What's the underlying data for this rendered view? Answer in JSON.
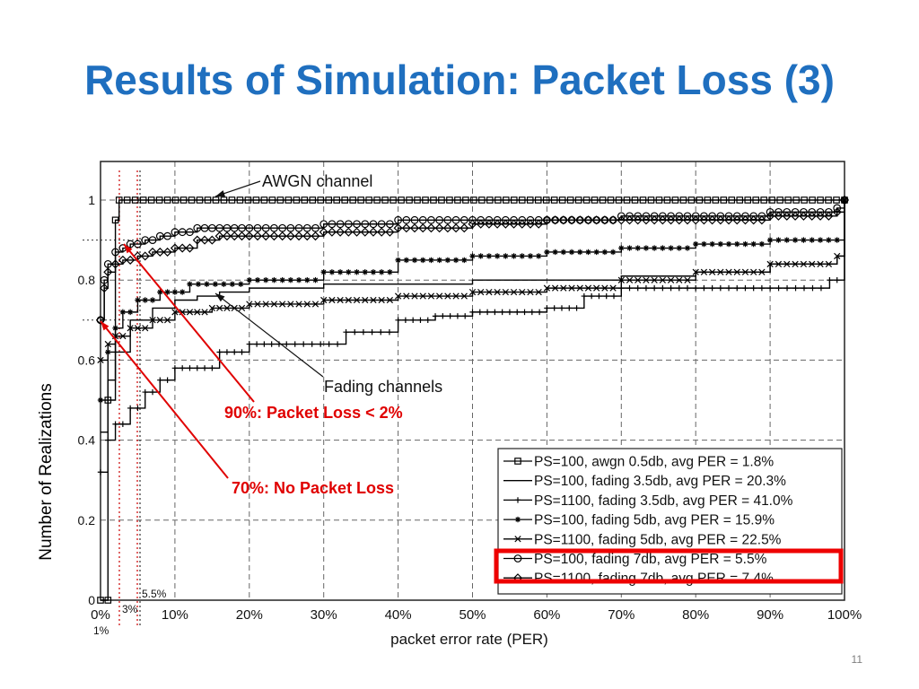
{
  "slide": {
    "title": "Results of Simulation: Packet Loss (3)",
    "page_number": "11"
  },
  "colors": {
    "title": "#1f6fbf",
    "annotation": "#e00000",
    "highlight_box": "#ee0000",
    "series": "#000000"
  },
  "annotations": {
    "awgn": "AWGN channel",
    "fading": "Fading channels",
    "pl90": "90%: Packet Loss < 2%",
    "pl70": "70%: No Packet Loss",
    "mark_1pct": "1%",
    "mark_3pct": "3%",
    "mark_55pct": "5.5%"
  },
  "chart_data": {
    "type": "line",
    "title": "",
    "xlabel": "packet error rate (PER)",
    "ylabel": "Number of Realizations",
    "xlim": [
      0,
      100
    ],
    "ylim": [
      0,
      1.1
    ],
    "x_ticks": [
      "0%",
      "10%",
      "20%",
      "30%",
      "40%",
      "50%",
      "60%",
      "70%",
      "80%",
      "90%",
      "100%"
    ],
    "y_ticks": [
      "0",
      "0.2",
      "0.4",
      "0.6",
      "0.8",
      "1"
    ],
    "grid": true,
    "legend_position": "bottom-right",
    "reference_lines_x": [
      1,
      3,
      5.5
    ],
    "reference_lines_y": [
      0.7,
      0.9
    ],
    "series": [
      {
        "name": "PS=100, awgn 0.5db, avg PER = 1.8%",
        "marker": "square",
        "x": [
          0,
          1,
          1,
          2,
          2.5,
          100
        ],
        "y": [
          0,
          0,
          0.5,
          0.95,
          1,
          1
        ]
      },
      {
        "name": "PS=100, fading 3.5db, avg PER = 20.3%",
        "marker": "none",
        "x": [
          0,
          1,
          2,
          4,
          7,
          10,
          13,
          16,
          20,
          30,
          50,
          70,
          80,
          90,
          99,
          100
        ],
        "y": [
          0.42,
          0.55,
          0.62,
          0.7,
          0.73,
          0.75,
          0.76,
          0.77,
          0.78,
          0.79,
          0.8,
          0.81,
          0.82,
          0.84,
          0.86,
          1
        ]
      },
      {
        "name": "PS=1100, fading 3.5db, avg PER = 41.0%",
        "marker": "plus",
        "x": [
          0,
          1,
          2,
          4,
          6,
          8,
          10,
          13,
          16,
          20,
          25,
          33,
          40,
          45,
          50,
          55,
          60,
          65,
          70,
          80,
          90,
          98,
          100
        ],
        "y": [
          0.32,
          0.4,
          0.44,
          0.48,
          0.52,
          0.55,
          0.58,
          0.58,
          0.62,
          0.64,
          0.64,
          0.67,
          0.7,
          0.71,
          0.72,
          0.72,
          0.73,
          0.76,
          0.78,
          0.78,
          0.78,
          0.8,
          1
        ]
      },
      {
        "name": "PS=100, fading 5db, avg PER = 15.9%",
        "marker": "asterisk",
        "x": [
          0,
          1,
          2,
          3,
          5,
          8,
          12,
          20,
          30,
          40,
          50,
          60,
          70,
          80,
          90,
          99,
          100
        ],
        "y": [
          0.5,
          0.62,
          0.68,
          0.72,
          0.75,
          0.77,
          0.79,
          0.8,
          0.82,
          0.85,
          0.86,
          0.87,
          0.88,
          0.89,
          0.9,
          0.9,
          1
        ]
      },
      {
        "name": "PS=1100, fading 5db, avg PER = 22.5%",
        "marker": "cross",
        "x": [
          0,
          1,
          2,
          4,
          7,
          10,
          15,
          20,
          30,
          40,
          50,
          60,
          70,
          80,
          90,
          99,
          100
        ],
        "y": [
          0.6,
          0.64,
          0.66,
          0.68,
          0.7,
          0.72,
          0.73,
          0.74,
          0.75,
          0.76,
          0.77,
          0.78,
          0.8,
          0.82,
          0.84,
          0.86,
          1
        ]
      },
      {
        "name": "PS=100, fading 7db, avg PER = 5.5%",
        "marker": "circle",
        "x": [
          0,
          0.5,
          1,
          2,
          3,
          4,
          6,
          8,
          10,
          13,
          16,
          20,
          30,
          40,
          50,
          60,
          70,
          80,
          90,
          99,
          100
        ],
        "y": [
          0.7,
          0.8,
          0.84,
          0.87,
          0.88,
          0.89,
          0.9,
          0.91,
          0.92,
          0.93,
          0.93,
          0.93,
          0.94,
          0.95,
          0.95,
          0.95,
          0.96,
          0.96,
          0.97,
          0.98,
          1
        ]
      },
      {
        "name": "PS=1100, fading 7db, avg PER = 7.4%",
        "marker": "diamond",
        "x": [
          0,
          0.5,
          1,
          2,
          3,
          5,
          7,
          10,
          13,
          16,
          20,
          30,
          40,
          50,
          60,
          70,
          80,
          90,
          99,
          100
        ],
        "y": [
          0.7,
          0.78,
          0.82,
          0.84,
          0.85,
          0.86,
          0.87,
          0.88,
          0.9,
          0.91,
          0.91,
          0.92,
          0.93,
          0.94,
          0.95,
          0.95,
          0.95,
          0.96,
          0.97,
          1
        ]
      }
    ]
  }
}
